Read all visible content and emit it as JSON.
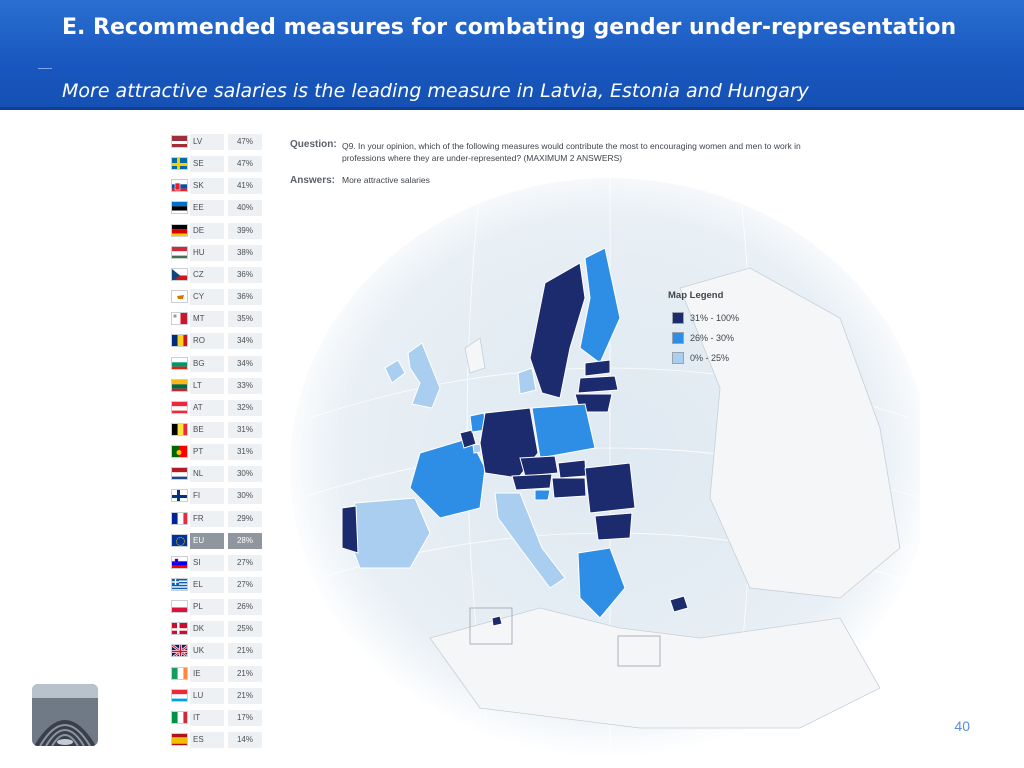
{
  "header": {
    "title": "E. Recommended measures for combating gender under-representation",
    "subtitle": "More attractive salaries is the leading measure in Latvia, Estonia and Hungary"
  },
  "question": {
    "label": "Question:",
    "text": "Q9. In your opinion, which of the following measures would contribute the most to encouraging women and men to work in professions where they are under-represented? (MAXIMUM 2 ANSWERS)"
  },
  "answers": {
    "label": "Answers:",
    "text": "More attractive salaries"
  },
  "legend": {
    "title": "Map Legend",
    "items": [
      {
        "label": "31% - 100%",
        "color": "#1c2a6e"
      },
      {
        "label": "26% - 30%",
        "color": "#2e8de4"
      },
      {
        "label": "0% - 25%",
        "color": "#a9cef0"
      }
    ]
  },
  "page_number": "40",
  "chart_data": {
    "type": "table",
    "title": "",
    "categories": [
      "LV",
      "SE",
      "SK",
      "EE",
      "DE",
      "HU",
      "CZ",
      "CY",
      "MT",
      "RO",
      "BG",
      "LT",
      "AT",
      "BE",
      "PT",
      "NL",
      "FI",
      "FR",
      "EU",
      "SI",
      "EL",
      "PL",
      "DK",
      "UK",
      "IE",
      "LU",
      "IT",
      "ES"
    ],
    "values": [
      47,
      47,
      41,
      40,
      39,
      38,
      36,
      36,
      35,
      34,
      34,
      33,
      32,
      31,
      31,
      30,
      30,
      29,
      28,
      27,
      27,
      26,
      25,
      21,
      21,
      21,
      17,
      14
    ],
    "labels": [
      "47%",
      "47%",
      "41%",
      "40%",
      "39%",
      "38%",
      "36%",
      "36%",
      "35%",
      "34%",
      "34%",
      "33%",
      "32%",
      "31%",
      "31%",
      "30%",
      "30%",
      "29%",
      "28%",
      "27%",
      "27%",
      "26%",
      "25%",
      "21%",
      "21%",
      "21%",
      "17%",
      "14%"
    ],
    "highlight": "EU",
    "map_bins": [
      {
        "label": "31% - 100%",
        "color": "#1c2a6e"
      },
      {
        "label": "26% - 30%",
        "color": "#2e8de4"
      },
      {
        "label": "0% - 25%",
        "color": "#a9cef0"
      }
    ]
  }
}
